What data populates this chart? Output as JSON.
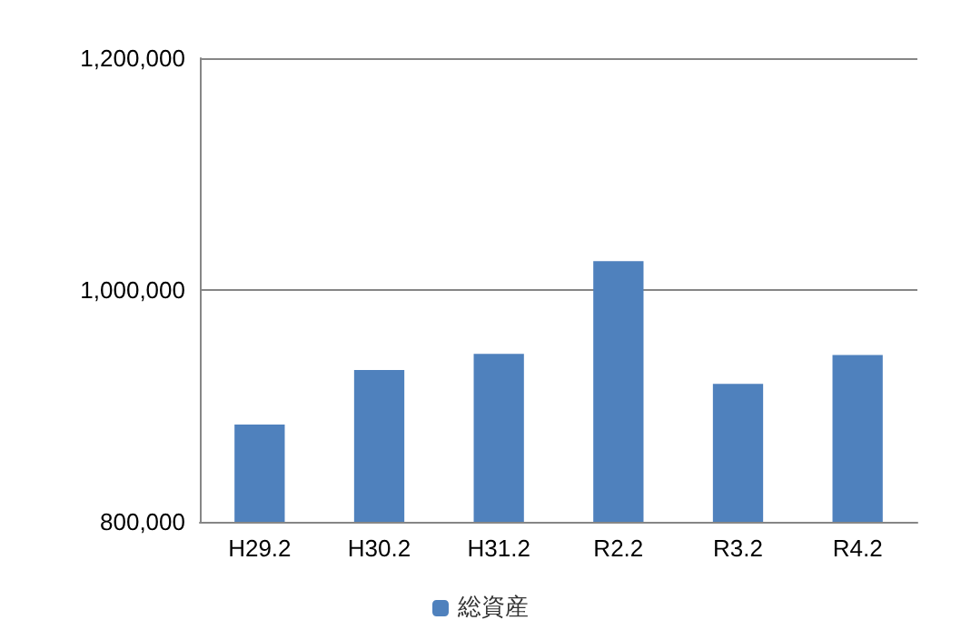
{
  "chart_data": {
    "type": "bar",
    "categories": [
      "H29.2",
      "H30.2",
      "H31.2",
      "R2.2",
      "R3.2",
      "R4.2"
    ],
    "series": [
      {
        "name": "総資産",
        "color": "#4f81bd",
        "values": [
          884000,
          931000,
          945000,
          1025000,
          919000,
          944000
        ]
      }
    ],
    "ylim": [
      800000,
      1200000
    ],
    "yticks": [
      {
        "value": 800000,
        "label": "800,000"
      },
      {
        "value": 1000000,
        "label": "1,000,000"
      },
      {
        "value": 1200000,
        "label": "1,200,000"
      }
    ],
    "grid": "y",
    "legend": "bottom"
  }
}
